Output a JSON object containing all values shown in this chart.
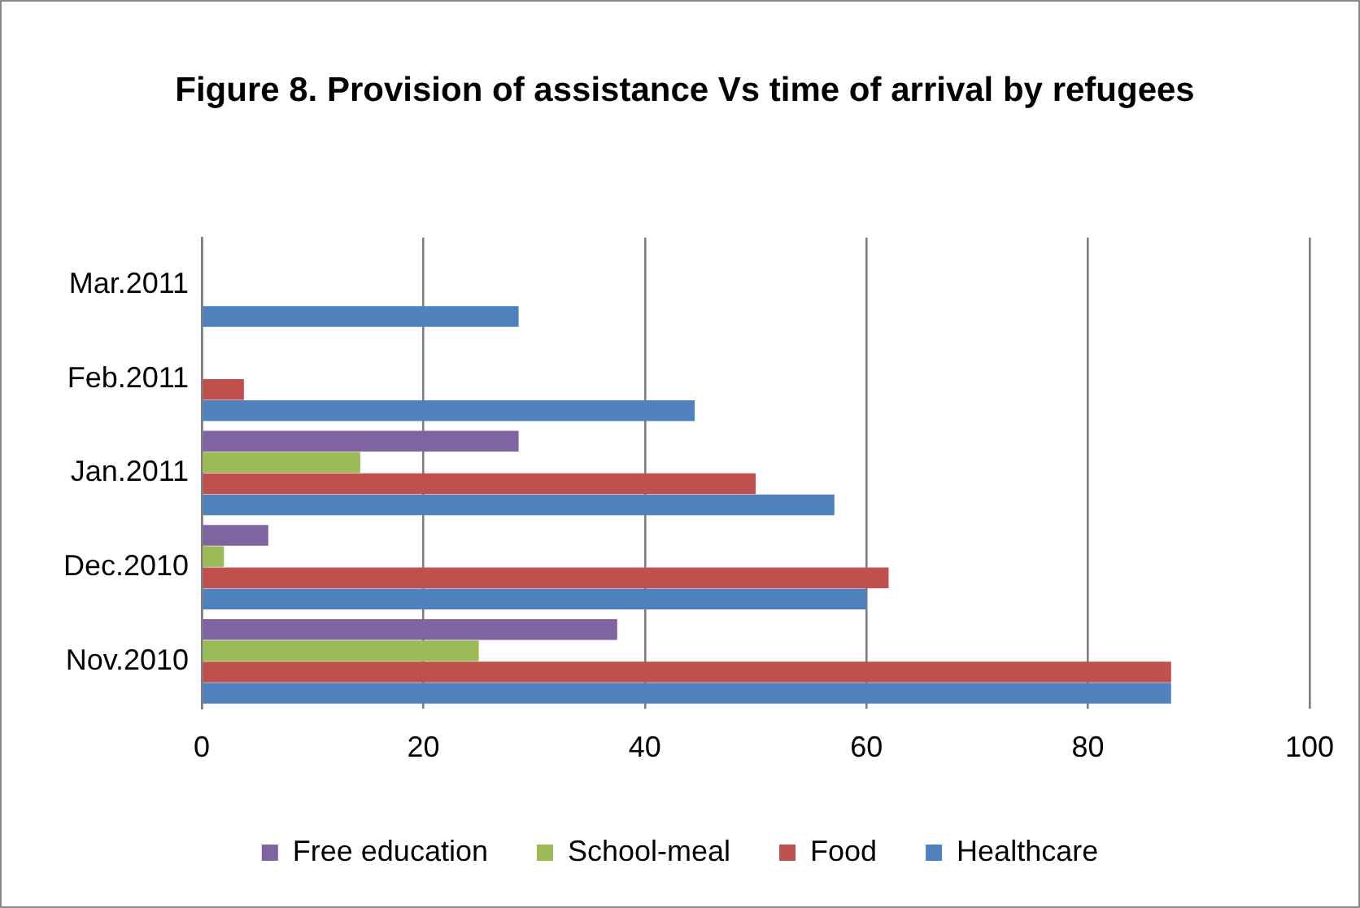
{
  "chart_data": {
    "type": "bar",
    "orientation": "horizontal",
    "title": "Figure 8. Provision of assistance Vs time of arrival by refugees",
    "categories": [
      "Mar.2011",
      "Feb.2011",
      "Jan.2011",
      "Dec.2010",
      "Nov.2010"
    ],
    "series": [
      {
        "name": "Free education",
        "color": "#8064a2",
        "values": [
          0,
          0,
          28.6,
          6,
          37.5
        ]
      },
      {
        "name": "School-meal",
        "color": "#9bbb59",
        "values": [
          0,
          0,
          14.3,
          2,
          25
        ]
      },
      {
        "name": "Food",
        "color": "#c0504d",
        "values": [
          0,
          3.8,
          50,
          62,
          87.5
        ]
      },
      {
        "name": "Healthcare",
        "color": "#4f81bd",
        "values": [
          28.6,
          44.5,
          57.1,
          60,
          87.5
        ]
      }
    ],
    "xlim": [
      0,
      100
    ],
    "xticks": [
      0,
      20,
      40,
      60,
      80,
      100
    ],
    "grid": "x",
    "legend": "bottom"
  }
}
